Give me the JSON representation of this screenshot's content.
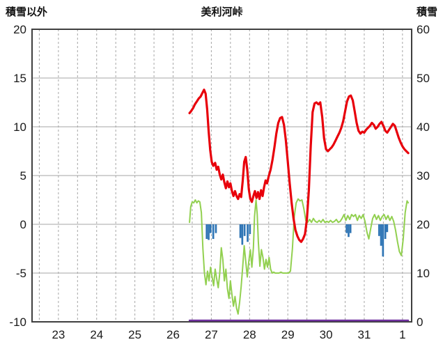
{
  "chart_data": {
    "type": "line",
    "title": "美利河峠",
    "left_axis": {
      "title": "積雪以外",
      "min": -10,
      "max": 20,
      "ticks": [
        20,
        15,
        10,
        5,
        0,
        -5,
        -10
      ]
    },
    "right_axis": {
      "title": "積雪",
      "min": 0,
      "max": 60,
      "ticks": [
        60,
        50,
        40,
        30,
        20,
        10,
        0
      ]
    },
    "x_axis": {
      "labels": [
        "23",
        "24",
        "25",
        "26",
        "27",
        "28",
        "29",
        "30",
        "31",
        "1"
      ],
      "domain": [
        22.81,
        32.74
      ],
      "grid_interval_days": 0.5
    },
    "grid": true,
    "legend": false,
    "colors": {
      "background": "#ffffff",
      "grid": "#a6a6a6",
      "border": "#3f3f3f",
      "text": "#1a1a1a"
    },
    "series": [
      {
        "id": "green-line",
        "color": "#92d050",
        "width": 2,
        "axis": "left",
        "points": [
          [
            26.93,
            0.2
          ],
          [
            26.96,
            1.8
          ],
          [
            27.0,
            2.3
          ],
          [
            27.04,
            2.2
          ],
          [
            27.08,
            2.5
          ],
          [
            27.12,
            2.2
          ],
          [
            27.16,
            2.4
          ],
          [
            27.2,
            2.3
          ],
          [
            27.24,
            1.2
          ],
          [
            27.28,
            -2.5
          ],
          [
            27.32,
            -5.0
          ],
          [
            27.36,
            -6.2
          ],
          [
            27.4,
            -4.8
          ],
          [
            27.44,
            -5.8
          ],
          [
            27.48,
            -4.4
          ],
          [
            27.52,
            -5.4
          ],
          [
            27.56,
            -6.3
          ],
          [
            27.6,
            -4.6
          ],
          [
            27.64,
            -5.6
          ],
          [
            27.68,
            -6.5
          ],
          [
            27.72,
            -5.0
          ],
          [
            27.76,
            -2.4
          ],
          [
            27.8,
            -3.6
          ],
          [
            27.84,
            -5.8
          ],
          [
            27.88,
            -4.6
          ],
          [
            27.92,
            -6.6
          ],
          [
            27.96,
            -7.6
          ],
          [
            28.0,
            -5.8
          ],
          [
            28.04,
            -7.2
          ],
          [
            28.08,
            -8.4
          ],
          [
            28.12,
            -7.4
          ],
          [
            28.16,
            -8.6
          ],
          [
            28.2,
            -9.2
          ],
          [
            28.24,
            -8.0
          ],
          [
            28.28,
            -6.4
          ],
          [
            28.32,
            -4.4
          ],
          [
            28.36,
            -2.2
          ],
          [
            28.4,
            -3.8
          ],
          [
            28.44,
            -5.4
          ],
          [
            28.48,
            -3.8
          ],
          [
            28.52,
            -2.6
          ],
          [
            28.56,
            -4.4
          ],
          [
            28.6,
            -2.4
          ],
          [
            28.63,
            0.8
          ],
          [
            28.67,
            2.5
          ],
          [
            28.7,
            1.0
          ],
          [
            28.73,
            -1.8
          ],
          [
            28.77,
            -4.3
          ],
          [
            28.81,
            -2.6
          ],
          [
            28.85,
            -3.4
          ],
          [
            28.89,
            -4.6
          ],
          [
            28.93,
            -3.6
          ],
          [
            28.97,
            -4.4
          ],
          [
            29.01,
            -3.4
          ],
          [
            29.05,
            -4.6
          ],
          [
            29.09,
            -5.0
          ],
          [
            29.13,
            -4.9
          ],
          [
            29.17,
            -5.0
          ],
          [
            29.22,
            -5.0
          ],
          [
            29.27,
            -5.0
          ],
          [
            29.32,
            -4.9
          ],
          [
            29.37,
            -5.0
          ],
          [
            29.42,
            -5.0
          ],
          [
            29.47,
            -5.0
          ],
          [
            29.52,
            -5.0
          ],
          [
            29.57,
            -4.8
          ],
          [
            29.62,
            -2.5
          ],
          [
            29.67,
            0.8
          ],
          [
            29.72,
            2.2
          ],
          [
            29.77,
            2.6
          ],
          [
            29.82,
            2.4
          ],
          [
            29.87,
            2.5
          ],
          [
            29.92,
            1.6
          ],
          [
            29.97,
            0.4
          ],
          [
            30.02,
            0.2
          ],
          [
            30.07,
            0.5
          ],
          [
            30.12,
            0.2
          ],
          [
            30.17,
            0.6
          ],
          [
            30.22,
            0.3
          ],
          [
            30.27,
            0.2
          ],
          [
            30.32,
            0.4
          ],
          [
            30.37,
            0.2
          ],
          [
            30.42,
            0.5
          ],
          [
            30.47,
            0.2
          ],
          [
            30.52,
            0.3
          ],
          [
            30.57,
            0.2
          ],
          [
            30.62,
            0.4
          ],
          [
            30.67,
            0.2
          ],
          [
            30.72,
            0.3
          ],
          [
            30.77,
            0.5
          ],
          [
            30.82,
            0.2
          ],
          [
            30.87,
            0.3
          ],
          [
            30.92,
            0.6
          ],
          [
            30.97,
            1.0
          ],
          [
            31.02,
            0.4
          ],
          [
            31.07,
            0.9
          ],
          [
            31.12,
            0.5
          ],
          [
            31.17,
            1.0
          ],
          [
            31.22,
            0.8
          ],
          [
            31.27,
            1.0
          ],
          [
            31.32,
            0.4
          ],
          [
            31.37,
            0.9
          ],
          [
            31.42,
            0.6
          ],
          [
            31.47,
            1.0
          ],
          [
            31.52,
            0.3
          ],
          [
            31.57,
            -0.8
          ],
          [
            31.62,
            -1.5
          ],
          [
            31.67,
            -0.4
          ],
          [
            31.72,
            0.6
          ],
          [
            31.77,
            1.0
          ],
          [
            31.82,
            0.5
          ],
          [
            31.87,
            0.9
          ],
          [
            31.92,
            0.4
          ],
          [
            31.97,
            0.8
          ],
          [
            32.02,
            1.0
          ],
          [
            32.07,
            0.5
          ],
          [
            32.12,
            0.9
          ],
          [
            32.17,
            0.4
          ],
          [
            32.22,
            0.8
          ],
          [
            32.27,
            0.3
          ],
          [
            32.32,
            -0.6
          ],
          [
            32.37,
            -1.8
          ],
          [
            32.42,
            -2.8
          ],
          [
            32.47,
            -3.2
          ],
          [
            32.52,
            -1.5
          ],
          [
            32.57,
            1.2
          ],
          [
            32.62,
            2.4
          ],
          [
            32.65,
            2.2
          ]
        ]
      },
      {
        "id": "red-line",
        "color": "#e8000b",
        "width": 3.2,
        "axis": "left",
        "points": [
          [
            26.93,
            11.4
          ],
          [
            26.97,
            11.6
          ],
          [
            27.02,
            11.9
          ],
          [
            27.07,
            12.3
          ],
          [
            27.12,
            12.6
          ],
          [
            27.17,
            12.9
          ],
          [
            27.22,
            13.1
          ],
          [
            27.27,
            13.5
          ],
          [
            27.31,
            13.8
          ],
          [
            27.35,
            13.4
          ],
          [
            27.39,
            11.8
          ],
          [
            27.43,
            9.5
          ],
          [
            27.47,
            7.6
          ],
          [
            27.51,
            6.4
          ],
          [
            27.55,
            6.0
          ],
          [
            27.6,
            6.3
          ],
          [
            27.64,
            5.6
          ],
          [
            27.68,
            5.9
          ],
          [
            27.72,
            5.1
          ],
          [
            27.76,
            4.6
          ],
          [
            27.8,
            5.1
          ],
          [
            27.84,
            4.3
          ],
          [
            27.88,
            3.7
          ],
          [
            27.92,
            4.4
          ],
          [
            27.96,
            3.8
          ],
          [
            28.0,
            4.2
          ],
          [
            28.04,
            3.4
          ],
          [
            28.08,
            2.9
          ],
          [
            28.12,
            3.4
          ],
          [
            28.16,
            2.9
          ],
          [
            28.2,
            2.6
          ],
          [
            28.24,
            3.1
          ],
          [
            28.28,
            2.8
          ],
          [
            28.32,
            4.4
          ],
          [
            28.36,
            6.4
          ],
          [
            28.4,
            6.9
          ],
          [
            28.44,
            5.6
          ],
          [
            28.48,
            3.6
          ],
          [
            28.52,
            2.6
          ],
          [
            28.56,
            2.3
          ],
          [
            28.6,
            2.9
          ],
          [
            28.64,
            3.4
          ],
          [
            28.68,
            2.7
          ],
          [
            28.72,
            3.3
          ],
          [
            28.76,
            2.6
          ],
          [
            28.8,
            3.5
          ],
          [
            28.84,
            2.9
          ],
          [
            28.88,
            3.8
          ],
          [
            28.92,
            4.5
          ],
          [
            28.96,
            4.2
          ],
          [
            29.0,
            4.9
          ],
          [
            29.05,
            5.6
          ],
          [
            29.1,
            6.6
          ],
          [
            29.15,
            7.9
          ],
          [
            29.2,
            9.3
          ],
          [
            29.25,
            10.4
          ],
          [
            29.3,
            10.9
          ],
          [
            29.35,
            11.0
          ],
          [
            29.4,
            10.2
          ],
          [
            29.45,
            8.6
          ],
          [
            29.5,
            6.4
          ],
          [
            29.55,
            4.2
          ],
          [
            29.6,
            2.2
          ],
          [
            29.65,
            0.6
          ],
          [
            29.7,
            -0.6
          ],
          [
            29.75,
            -1.2
          ],
          [
            29.8,
            -1.6
          ],
          [
            29.85,
            -1.8
          ],
          [
            29.9,
            -1.5
          ],
          [
            29.95,
            -1.0
          ],
          [
            30.0,
            0.5
          ],
          [
            30.05,
            3.5
          ],
          [
            30.1,
            8.0
          ],
          [
            30.15,
            11.5
          ],
          [
            30.2,
            12.4
          ],
          [
            30.25,
            12.5
          ],
          [
            30.3,
            12.3
          ],
          [
            30.35,
            12.5
          ],
          [
            30.4,
            11.0
          ],
          [
            30.45,
            8.8
          ],
          [
            30.5,
            7.7
          ],
          [
            30.55,
            7.5
          ],
          [
            30.6,
            7.7
          ],
          [
            30.65,
            7.9
          ],
          [
            30.7,
            8.2
          ],
          [
            30.75,
            8.6
          ],
          [
            30.8,
            9.0
          ],
          [
            30.85,
            9.4
          ],
          [
            30.9,
            9.9
          ],
          [
            30.95,
            10.6
          ],
          [
            31.0,
            11.6
          ],
          [
            31.05,
            12.6
          ],
          [
            31.1,
            13.1
          ],
          [
            31.15,
            13.2
          ],
          [
            31.2,
            12.7
          ],
          [
            31.25,
            11.6
          ],
          [
            31.3,
            10.4
          ],
          [
            31.35,
            9.6
          ],
          [
            31.4,
            9.3
          ],
          [
            31.45,
            9.5
          ],
          [
            31.5,
            9.4
          ],
          [
            31.55,
            9.7
          ],
          [
            31.6,
            9.9
          ],
          [
            31.65,
            10.1
          ],
          [
            31.7,
            10.4
          ],
          [
            31.75,
            10.2
          ],
          [
            31.8,
            9.8
          ],
          [
            31.85,
            10.0
          ],
          [
            31.9,
            10.3
          ],
          [
            31.95,
            10.5
          ],
          [
            32.0,
            10.1
          ],
          [
            32.05,
            9.6
          ],
          [
            32.1,
            9.4
          ],
          [
            32.15,
            9.7
          ],
          [
            32.2,
            10.0
          ],
          [
            32.25,
            10.3
          ],
          [
            32.3,
            10.1
          ],
          [
            32.35,
            9.5
          ],
          [
            32.4,
            8.9
          ],
          [
            32.45,
            8.4
          ],
          [
            32.5,
            8.0
          ],
          [
            32.55,
            7.7
          ],
          [
            32.6,
            7.5
          ],
          [
            32.65,
            7.3
          ]
        ]
      },
      {
        "id": "purple-line",
        "color": "#7030a0",
        "width": 2.5,
        "axis": "right",
        "points": [
          [
            26.93,
            0
          ],
          [
            32.65,
            0
          ]
        ]
      }
    ],
    "bars": {
      "id": "blue-bars",
      "color": "#2f75b5",
      "axis": "left",
      "baseline": 0,
      "width_days": 0.05,
      "points": [
        [
          27.38,
          -1.5
        ],
        [
          27.43,
          -1.6
        ],
        [
          27.48,
          -0.9
        ],
        [
          27.55,
          -1.5
        ],
        [
          27.62,
          -0.9
        ],
        [
          28.26,
          -1.4
        ],
        [
          28.31,
          -2.1
        ],
        [
          28.37,
          -1.2
        ],
        [
          28.45,
          -1.8
        ],
        [
          28.51,
          -1.0
        ],
        [
          31.04,
          -0.9
        ],
        [
          31.09,
          -1.3
        ],
        [
          31.14,
          -0.9
        ],
        [
          31.89,
          -1.2
        ],
        [
          31.94,
          -2.2
        ],
        [
          31.99,
          -3.3
        ],
        [
          32.05,
          -1.5
        ],
        [
          32.1,
          -0.8
        ]
      ]
    }
  }
}
